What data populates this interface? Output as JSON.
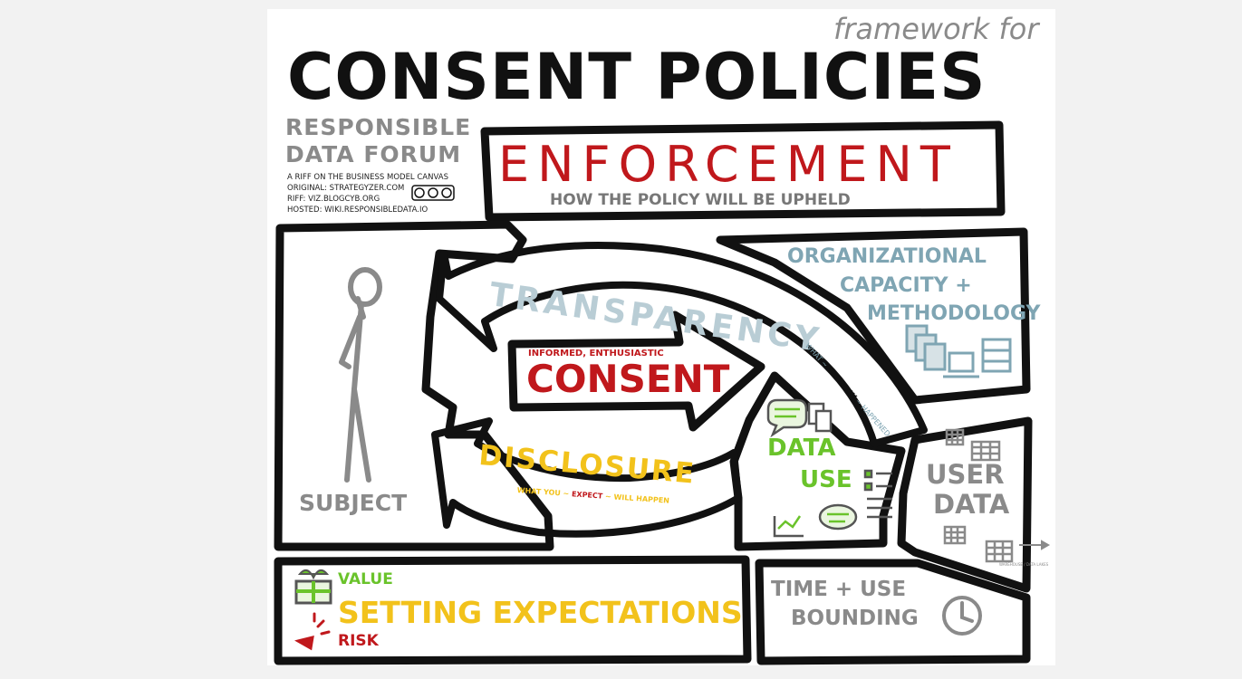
{
  "header": {
    "pretitle": "framework for",
    "title": "CONSENT POLICIES"
  },
  "credits": {
    "org_line1": "RESPONSIBLE",
    "org_line2": "DATA FORUM",
    "riff": "A RIFF ON THE BUSINESS MODEL CANVAS",
    "original": "ORIGINAL: STRATEGYZER.COM",
    "riff_url": "RIFF: VIZ.BLOGCYB.ORG",
    "hosted": "HOSTED: WIKI.RESPONSIBLEDATA.IO",
    "license_icon": "cc-by-sa-icon",
    "license_text": "cc"
  },
  "enforcement": {
    "title": "ENFORCEMENT",
    "subtitle": "HOW THE POLICY WILL BE UPHELD"
  },
  "subject": {
    "label": "SUBJECT"
  },
  "transparency": {
    "label": "TRANSPARENCY",
    "note_pre": "WHAT",
    "note_emph": "ACTUALLY",
    "note_post": "HAPPENED"
  },
  "consent": {
    "pretitle": "INFORMED, ENTHUSIASTIC",
    "title": "CONSENT"
  },
  "disclosure": {
    "label": "DISCLOSURE",
    "note_pre": "WHAT YOU",
    "note_emph": "EXPECT",
    "note_post": "WILL HAPPEN"
  },
  "org_capacity": {
    "line1": "ORGANIZATIONAL",
    "line2": "CAPACITY +",
    "line3": "METHODOLOGY"
  },
  "data_use": {
    "line1": "DATA",
    "line2": "USE"
  },
  "user_data": {
    "line1": "USER",
    "line2": "DATA",
    "arrow_note": "WAREHOUSE / DATA LAKES"
  },
  "expectations": {
    "value": "VALUE",
    "title": "SETTING EXPECTATIONS",
    "risk": "RISK"
  },
  "bounding": {
    "line1": "TIME + USE",
    "line2": "BOUNDING"
  },
  "colors": {
    "ink": "#111111",
    "red": "#c0181c",
    "yellow": "#f2c21b",
    "green": "#6ac32b",
    "teal": "#7fa5b3",
    "gray": "#8a8a8a",
    "light_blue": "#b9cdd5"
  }
}
